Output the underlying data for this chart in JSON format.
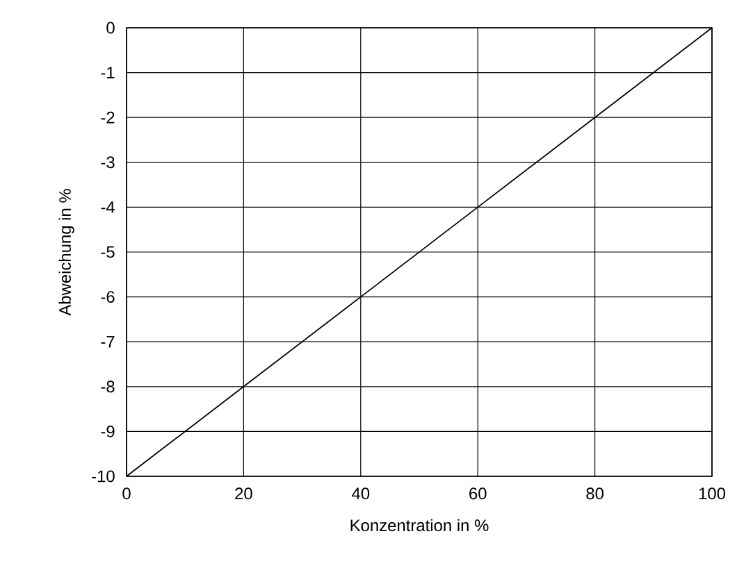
{
  "chart_data": {
    "type": "line",
    "xlabel": "Konzentration in %",
    "ylabel": "Abweichung in %",
    "x": [
      0,
      20,
      40,
      60,
      80,
      100
    ],
    "series": [
      {
        "color": "#000000",
        "values": [
          -10,
          -8,
          -6,
          -4,
          -2,
          0
        ]
      }
    ],
    "xlim": [
      0,
      100
    ],
    "ylim": [
      -10,
      0
    ],
    "xticks": [
      0,
      20,
      40,
      60,
      80,
      100
    ],
    "yticks": [
      -10,
      -9,
      -8,
      -7,
      -6,
      -5,
      -4,
      -3,
      -2,
      -1,
      0
    ],
    "grid": true,
    "marker": "none",
    "line_style": "solid"
  }
}
